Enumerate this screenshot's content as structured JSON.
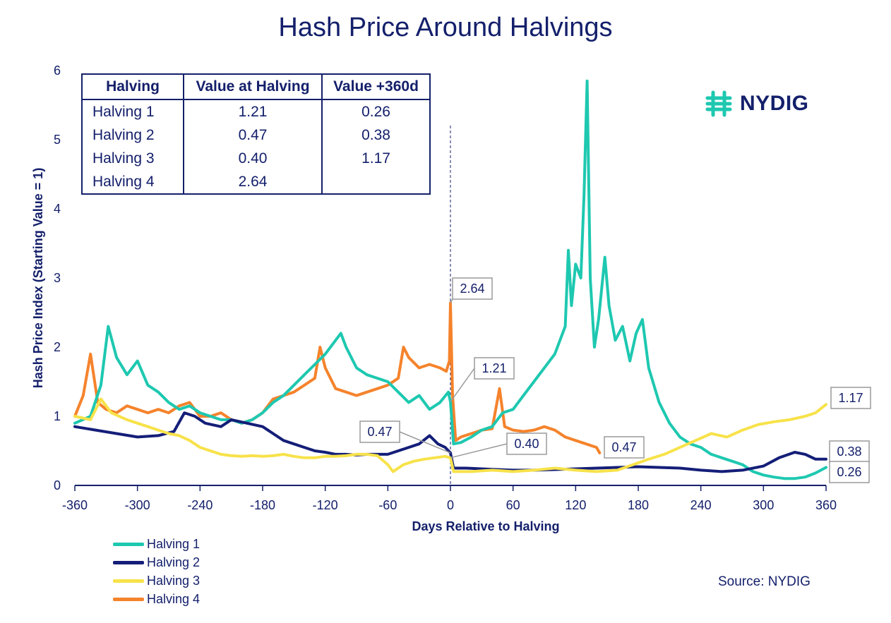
{
  "title": "Hash Price Around Halvings",
  "source": "Source: NYDIG",
  "logo": {
    "text": "NYDIG",
    "icon": "nydig-logo-icon",
    "color": "#1ec8b0"
  },
  "table": {
    "headers": [
      "Halving",
      "Value at Halving",
      "Value +360d"
    ],
    "rows": [
      [
        "Halving 1",
        "1.21",
        "0.26"
      ],
      [
        "Halving 2",
        "0.47",
        "0.38"
      ],
      [
        "Halving 3",
        "0.40",
        "1.17"
      ],
      [
        "Halving 4",
        "2.64",
        ""
      ]
    ]
  },
  "chart_data": {
    "type": "line",
    "title": "Hash Price Around Halvings",
    "xlabel": "Days Relative to Halving",
    "ylabel": "Hash Price Index (Starting Value = 1)",
    "xlim": [
      -360,
      360
    ],
    "ylim": [
      0,
      6
    ],
    "xticks": [
      -360,
      -300,
      -240,
      -180,
      -120,
      -60,
      0,
      60,
      120,
      180,
      240,
      300,
      360
    ],
    "yticks": [
      0,
      1,
      2,
      3,
      4,
      5,
      6
    ],
    "halving_marker_x": 0,
    "legend_position": "bottom-left",
    "series": [
      {
        "name": "Halving 1",
        "color": "#1ec8b0",
        "points": [
          [
            -360,
            0.9
          ],
          [
            -345,
            1.0
          ],
          [
            -335,
            1.45
          ],
          [
            -328,
            2.3
          ],
          [
            -320,
            1.85
          ],
          [
            -310,
            1.6
          ],
          [
            -300,
            1.8
          ],
          [
            -290,
            1.45
          ],
          [
            -280,
            1.35
          ],
          [
            -270,
            1.2
          ],
          [
            -260,
            1.1
          ],
          [
            -250,
            1.15
          ],
          [
            -240,
            1.05
          ],
          [
            -230,
            1.0
          ],
          [
            -220,
            0.95
          ],
          [
            -210,
            0.95
          ],
          [
            -200,
            0.9
          ],
          [
            -190,
            0.95
          ],
          [
            -180,
            1.05
          ],
          [
            -170,
            1.2
          ],
          [
            -160,
            1.3
          ],
          [
            -150,
            1.45
          ],
          [
            -140,
            1.6
          ],
          [
            -130,
            1.75
          ],
          [
            -120,
            1.9
          ],
          [
            -110,
            2.1
          ],
          [
            -105,
            2.2
          ],
          [
            -100,
            2.0
          ],
          [
            -90,
            1.7
          ],
          [
            -80,
            1.6
          ],
          [
            -70,
            1.55
          ],
          [
            -60,
            1.5
          ],
          [
            -50,
            1.35
          ],
          [
            -40,
            1.2
          ],
          [
            -30,
            1.3
          ],
          [
            -20,
            1.1
          ],
          [
            -10,
            1.2
          ],
          [
            -2,
            1.35
          ],
          [
            0,
            1.21
          ],
          [
            3,
            0.6
          ],
          [
            10,
            0.62
          ],
          [
            20,
            0.7
          ],
          [
            30,
            0.8
          ],
          [
            40,
            0.85
          ],
          [
            50,
            1.05
          ],
          [
            60,
            1.1
          ],
          [
            70,
            1.3
          ],
          [
            80,
            1.5
          ],
          [
            90,
            1.7
          ],
          [
            100,
            1.9
          ],
          [
            110,
            2.3
          ],
          [
            113,
            3.4
          ],
          [
            116,
            2.6
          ],
          [
            120,
            3.2
          ],
          [
            125,
            3.0
          ],
          [
            128,
            4.2
          ],
          [
            131,
            5.85
          ],
          [
            134,
            3.0
          ],
          [
            138,
            2.0
          ],
          [
            142,
            2.4
          ],
          [
            148,
            3.3
          ],
          [
            152,
            2.6
          ],
          [
            158,
            2.1
          ],
          [
            165,
            2.3
          ],
          [
            172,
            1.8
          ],
          [
            178,
            2.2
          ],
          [
            184,
            2.4
          ],
          [
            190,
            1.7
          ],
          [
            200,
            1.2
          ],
          [
            210,
            0.9
          ],
          [
            220,
            0.7
          ],
          [
            230,
            0.6
          ],
          [
            240,
            0.55
          ],
          [
            250,
            0.45
          ],
          [
            260,
            0.4
          ],
          [
            270,
            0.35
          ],
          [
            280,
            0.3
          ],
          [
            290,
            0.2
          ],
          [
            300,
            0.15
          ],
          [
            310,
            0.12
          ],
          [
            320,
            0.1
          ],
          [
            330,
            0.1
          ],
          [
            340,
            0.12
          ],
          [
            350,
            0.18
          ],
          [
            360,
            0.26
          ]
        ]
      },
      {
        "name": "Halving 2",
        "color": "#141e78",
        "points": [
          [
            -360,
            0.85
          ],
          [
            -340,
            0.8
          ],
          [
            -320,
            0.75
          ],
          [
            -300,
            0.7
          ],
          [
            -280,
            0.72
          ],
          [
            -265,
            0.78
          ],
          [
            -255,
            1.05
          ],
          [
            -245,
            1.0
          ],
          [
            -235,
            0.9
          ],
          [
            -220,
            0.85
          ],
          [
            -210,
            0.95
          ],
          [
            -195,
            0.9
          ],
          [
            -180,
            0.85
          ],
          [
            -170,
            0.75
          ],
          [
            -160,
            0.65
          ],
          [
            -150,
            0.6
          ],
          [
            -140,
            0.55
          ],
          [
            -130,
            0.5
          ],
          [
            -120,
            0.48
          ],
          [
            -110,
            0.45
          ],
          [
            -100,
            0.45
          ],
          [
            -90,
            0.44
          ],
          [
            -80,
            0.45
          ],
          [
            -70,
            0.45
          ],
          [
            -60,
            0.45
          ],
          [
            -50,
            0.5
          ],
          [
            -40,
            0.55
          ],
          [
            -30,
            0.6
          ],
          [
            -20,
            0.72
          ],
          [
            -12,
            0.6
          ],
          [
            -5,
            0.55
          ],
          [
            0,
            0.47
          ],
          [
            3,
            0.25
          ],
          [
            15,
            0.25
          ],
          [
            30,
            0.24
          ],
          [
            45,
            0.23
          ],
          [
            60,
            0.22
          ],
          [
            80,
            0.22
          ],
          [
            100,
            0.23
          ],
          [
            120,
            0.24
          ],
          [
            140,
            0.25
          ],
          [
            160,
            0.26
          ],
          [
            180,
            0.27
          ],
          [
            200,
            0.26
          ],
          [
            220,
            0.25
          ],
          [
            240,
            0.22
          ],
          [
            260,
            0.2
          ],
          [
            280,
            0.22
          ],
          [
            300,
            0.28
          ],
          [
            315,
            0.4
          ],
          [
            330,
            0.48
          ],
          [
            340,
            0.45
          ],
          [
            350,
            0.38
          ],
          [
            360,
            0.38
          ]
        ]
      },
      {
        "name": "Halving 3",
        "color": "#f7e24a",
        "points": [
          [
            -360,
            1.0
          ],
          [
            -345,
            0.95
          ],
          [
            -335,
            1.25
          ],
          [
            -325,
            1.05
          ],
          [
            -310,
            0.95
          ],
          [
            -300,
            0.9
          ],
          [
            -290,
            0.85
          ],
          [
            -280,
            0.8
          ],
          [
            -270,
            0.75
          ],
          [
            -260,
            0.72
          ],
          [
            -250,
            0.65
          ],
          [
            -240,
            0.55
          ],
          [
            -230,
            0.5
          ],
          [
            -220,
            0.45
          ],
          [
            -210,
            0.43
          ],
          [
            -200,
            0.42
          ],
          [
            -190,
            0.43
          ],
          [
            -180,
            0.42
          ],
          [
            -170,
            0.43
          ],
          [
            -160,
            0.45
          ],
          [
            -150,
            0.42
          ],
          [
            -140,
            0.4
          ],
          [
            -130,
            0.4
          ],
          [
            -120,
            0.42
          ],
          [
            -110,
            0.42
          ],
          [
            -100,
            0.43
          ],
          [
            -90,
            0.45
          ],
          [
            -80,
            0.45
          ],
          [
            -70,
            0.43
          ],
          [
            -60,
            0.3
          ],
          [
            -55,
            0.2
          ],
          [
            -45,
            0.3
          ],
          [
            -35,
            0.35
          ],
          [
            -25,
            0.38
          ],
          [
            -15,
            0.4
          ],
          [
            -5,
            0.42
          ],
          [
            0,
            0.4
          ],
          [
            3,
            0.2
          ],
          [
            20,
            0.2
          ],
          [
            40,
            0.22
          ],
          [
            60,
            0.2
          ],
          [
            80,
            0.22
          ],
          [
            100,
            0.25
          ],
          [
            120,
            0.22
          ],
          [
            140,
            0.2
          ],
          [
            160,
            0.22
          ],
          [
            175,
            0.3
          ],
          [
            190,
            0.38
          ],
          [
            205,
            0.45
          ],
          [
            220,
            0.55
          ],
          [
            235,
            0.65
          ],
          [
            250,
            0.75
          ],
          [
            265,
            0.7
          ],
          [
            280,
            0.8
          ],
          [
            295,
            0.88
          ],
          [
            310,
            0.92
          ],
          [
            325,
            0.95
          ],
          [
            340,
            1.0
          ],
          [
            350,
            1.05
          ],
          [
            360,
            1.17
          ]
        ]
      },
      {
        "name": "Halving 4",
        "color": "#f5832c",
        "points": [
          [
            -360,
            1.0
          ],
          [
            -352,
            1.3
          ],
          [
            -345,
            1.9
          ],
          [
            -338,
            1.2
          ],
          [
            -330,
            1.1
          ],
          [
            -320,
            1.05
          ],
          [
            -310,
            1.15
          ],
          [
            -300,
            1.1
          ],
          [
            -290,
            1.05
          ],
          [
            -280,
            1.1
          ],
          [
            -270,
            1.05
          ],
          [
            -260,
            1.15
          ],
          [
            -250,
            1.2
          ],
          [
            -240,
            1.0
          ],
          [
            -230,
            1.0
          ],
          [
            -220,
            1.05
          ],
          [
            -210,
            0.95
          ],
          [
            -200,
            0.9
          ],
          [
            -190,
            0.95
          ],
          [
            -180,
            1.05
          ],
          [
            -170,
            1.25
          ],
          [
            -160,
            1.3
          ],
          [
            -150,
            1.35
          ],
          [
            -140,
            1.45
          ],
          [
            -130,
            1.55
          ],
          [
            -125,
            2.0
          ],
          [
            -120,
            1.7
          ],
          [
            -110,
            1.4
          ],
          [
            -100,
            1.35
          ],
          [
            -90,
            1.3
          ],
          [
            -80,
            1.35
          ],
          [
            -70,
            1.4
          ],
          [
            -60,
            1.45
          ],
          [
            -50,
            1.55
          ],
          [
            -45,
            2.0
          ],
          [
            -40,
            1.85
          ],
          [
            -30,
            1.7
          ],
          [
            -20,
            1.75
          ],
          [
            -10,
            1.7
          ],
          [
            -4,
            1.65
          ],
          [
            -1,
            1.8
          ],
          [
            0,
            2.64
          ],
          [
            2,
            1.3
          ],
          [
            5,
            0.65
          ],
          [
            10,
            0.7
          ],
          [
            20,
            0.75
          ],
          [
            30,
            0.8
          ],
          [
            40,
            0.82
          ],
          [
            47,
            1.4
          ],
          [
            52,
            0.85
          ],
          [
            60,
            0.8
          ],
          [
            70,
            0.78
          ],
          [
            80,
            0.8
          ],
          [
            90,
            0.85
          ],
          [
            100,
            0.8
          ],
          [
            110,
            0.7
          ],
          [
            120,
            0.65
          ],
          [
            130,
            0.6
          ],
          [
            140,
            0.55
          ],
          [
            143,
            0.47
          ]
        ]
      }
    ],
    "annotations": [
      {
        "text": "2.64",
        "series": "Halving 4",
        "x": 0,
        "y": 2.64
      },
      {
        "text": "1.21",
        "series": "Halving 1",
        "x": 0,
        "y": 1.21
      },
      {
        "text": "0.47",
        "series": "Halving 2",
        "x": 0,
        "y": 0.47
      },
      {
        "text": "0.40",
        "series": "Halving 3",
        "x": 0,
        "y": 0.4
      },
      {
        "text": "0.47",
        "series": "Halving 4",
        "x": 143,
        "y": 0.47
      },
      {
        "text": "1.17",
        "series": "Halving 3",
        "x": 360,
        "y": 1.17
      },
      {
        "text": "0.38",
        "series": "Halving 2",
        "x": 360,
        "y": 0.38
      },
      {
        "text": "0.26",
        "series": "Halving 1",
        "x": 360,
        "y": 0.26
      }
    ]
  }
}
